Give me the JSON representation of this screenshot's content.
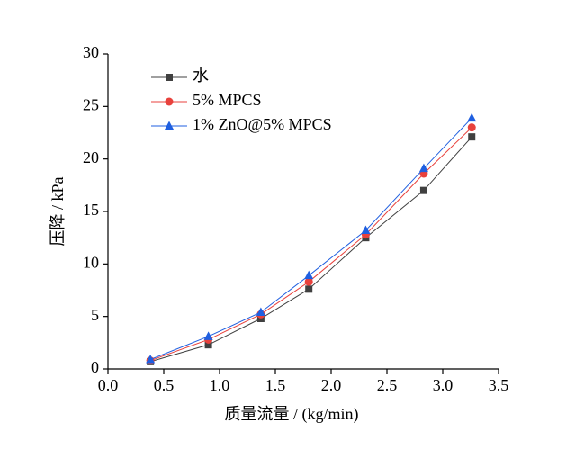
{
  "chart_data": {
    "type": "line",
    "x_label": "质量流量 / (kg/min)",
    "y_label": "压降 / kPa",
    "x": [
      0.38,
      0.9,
      1.37,
      1.8,
      2.31,
      2.83,
      3.26
    ],
    "series": [
      {
        "name": "水",
        "color": "#404040",
        "marker": "square",
        "values": [
          0.7,
          2.3,
          4.8,
          7.6,
          12.5,
          17.0,
          22.1
        ]
      },
      {
        "name": "5% MPCS",
        "color": "#e8413c",
        "marker": "circle",
        "values": [
          0.8,
          2.8,
          5.2,
          8.3,
          12.8,
          18.6,
          23.0
        ]
      },
      {
        "name": "1% ZnO@5% MPCS",
        "color": "#1f5fe0",
        "marker": "triangle",
        "values": [
          0.9,
          3.1,
          5.4,
          8.9,
          13.2,
          19.1,
          23.9
        ]
      }
    ],
    "xlim": [
      0,
      3.5
    ],
    "xticks": [
      {
        "value": 0,
        "label": "0.0"
      },
      0.5,
      {
        "value": 1,
        "label": "1.0"
      },
      1.5,
      {
        "value": 2,
        "label": "2.0"
      },
      2.5,
      {
        "value": 3,
        "label": "3.0"
      },
      3.5
    ],
    "ylim": [
      0,
      30
    ],
    "yticks": [
      0,
      5,
      10,
      15,
      20,
      25,
      30
    ],
    "legend": "upper-left",
    "grid": false
  }
}
